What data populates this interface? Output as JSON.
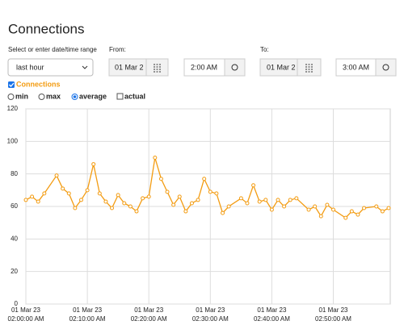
{
  "header": {
    "title": "Connections"
  },
  "controls": {
    "range_label": "Select or enter date/time range",
    "range_value": "last hour",
    "from_label": "From:",
    "from_date": "01 Mar 2",
    "from_time": "2:00 AM",
    "to_label": "To:",
    "to_date": "01 Mar 2",
    "to_time": "3:00 AM",
    "options": [
      "min",
      "max",
      "average",
      "actual"
    ],
    "selected_option": 2
  },
  "chart_data": {
    "type": "line",
    "x_date": "01 Mar 23",
    "x": [
      "02:00:00 AM",
      "02:01:00 AM",
      "02:02:00 AM",
      "02:03:00 AM",
      "02:05:00 AM",
      "02:06:00 AM",
      "02:07:00 AM",
      "02:08:00 AM",
      "02:09:00 AM",
      "02:10:00 AM",
      "02:11:00 AM",
      "02:12:00 AM",
      "02:13:00 AM",
      "02:14:00 AM",
      "02:15:00 AM",
      "02:16:00 AM",
      "02:17:00 AM",
      "02:18:00 AM",
      "02:19:00 AM",
      "02:20:00 AM",
      "02:21:00 AM",
      "02:22:00 AM",
      "02:23:00 AM",
      "02:24:00 AM",
      "02:25:00 AM",
      "02:26:00 AM",
      "02:27:00 AM",
      "02:28:00 AM",
      "02:29:00 AM",
      "02:30:00 AM",
      "02:31:00 AM",
      "02:32:00 AM",
      "02:33:00 AM",
      "02:35:00 AM",
      "02:36:00 AM",
      "02:37:00 AM",
      "02:38:00 AM",
      "02:39:00 AM",
      "02:40:00 AM",
      "02:41:00 AM",
      "02:42:00 AM",
      "02:43:00 AM",
      "02:44:00 AM",
      "02:46:00 AM",
      "02:47:00 AM",
      "02:48:00 AM",
      "02:49:00 AM",
      "02:50:00 AM",
      "02:52:00 AM",
      "02:53:00 AM",
      "02:54:00 AM",
      "02:55:00 AM",
      "02:57:00 AM",
      "02:58:00 AM",
      "02:59:00 AM"
    ],
    "series": [
      {
        "name": "Connections",
        "color": "#f39c12",
        "values": [
          64,
          66,
          63,
          68,
          79,
          71,
          68,
          59,
          64,
          70,
          86,
          68,
          63,
          59,
          67,
          62,
          60,
          57,
          65,
          66,
          90,
          77,
          69,
          61,
          66,
          57,
          62,
          64,
          77,
          69,
          68,
          56,
          60,
          65,
          62,
          73,
          63,
          64,
          58,
          64,
          60,
          64,
          65,
          58,
          60,
          54,
          61,
          58,
          53,
          57,
          55,
          59,
          60,
          57,
          59
        ]
      }
    ],
    "xlim": [
      "02:00:00 AM",
      "02:59:00 AM"
    ],
    "xticks": [
      "02:00:00 AM",
      "02:10:00 AM",
      "02:20:00 AM",
      "02:30:00 AM",
      "02:40:00 AM",
      "02:50:00 AM"
    ],
    "ylim": [
      0,
      120
    ],
    "yticks": [
      0,
      20,
      40,
      60,
      80,
      100,
      120
    ],
    "grid": true
  }
}
